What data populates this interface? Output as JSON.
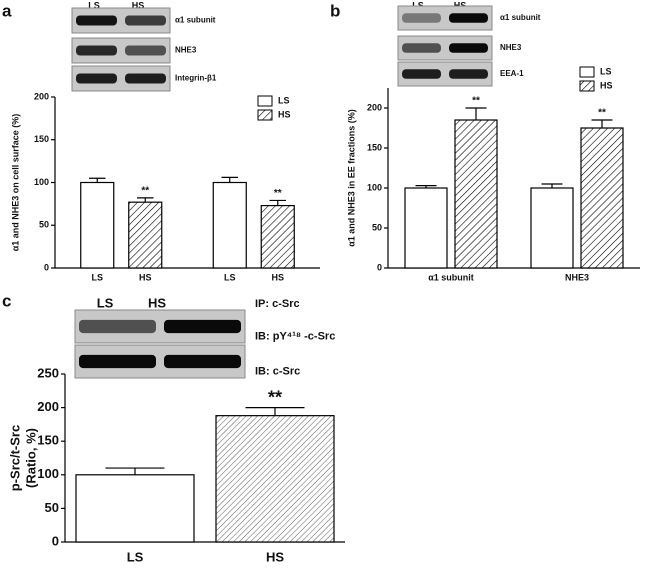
{
  "chart_data": [
    {
      "type": "bar",
      "panel": "a",
      "blot": {
        "lanes": [
          "LS",
          "HS"
        ],
        "rows": [
          "α1 subunit",
          "NHE3",
          "Integrin-β1"
        ]
      },
      "ylabel": "α1 and NHE3 on cell surface (%)",
      "categories": [
        null,
        null
      ],
      "series": [
        {
          "name": "LS",
          "color": "#ffffff",
          "hatch": false,
          "values": [
            100,
            100
          ],
          "errors": [
            5,
            6
          ]
        },
        {
          "name": "HS",
          "color": "#ffffff",
          "hatch": true,
          "values": [
            77,
            73
          ],
          "errors": [
            5,
            6
          ],
          "annotations": [
            {
              "index": 0,
              "label": "**"
            },
            {
              "index": 1,
              "label": "**"
            }
          ]
        }
      ],
      "ylim": [
        0,
        200
      ],
      "yticks": [
        0,
        50,
        100,
        150,
        200
      ],
      "legend": "upper right"
    },
    {
      "type": "bar",
      "panel": "b",
      "blot": {
        "lanes": [
          "LS",
          "HS"
        ],
        "rows": [
          "α1 subunit",
          "NHE3",
          "EEA-1"
        ]
      },
      "ylabel": "α1 and NHE3 in EE fractions (%)",
      "categories": [
        "α1 subunit",
        "NHE3"
      ],
      "series": [
        {
          "name": "LS",
          "color": "#ffffff",
          "hatch": false,
          "values": [
            100,
            100
          ],
          "errors": [
            3,
            5
          ]
        },
        {
          "name": "HS",
          "color": "#ffffff",
          "hatch": true,
          "values": [
            185,
            175
          ],
          "errors": [
            15,
            10
          ],
          "annotations": [
            {
              "index": 0,
              "label": "**"
            },
            {
              "index": 1,
              "label": "**"
            }
          ]
        }
      ],
      "ylim": [
        0,
        225
      ],
      "yticks": [
        0,
        50,
        100,
        150,
        200
      ],
      "legend": "upper right"
    },
    {
      "type": "bar",
      "panel": "c",
      "blot": {
        "lanes": [
          "LS",
          "HS"
        ],
        "rows": [
          "IB: pY⁴¹⁸ -c-Src",
          "IB: c-Src"
        ],
        "header": "IP: c-Src"
      },
      "ylabel": [
        "p-Src/t-Src",
        "(Ratio, %)"
      ],
      "categories": [
        "LS",
        "HS"
      ],
      "values": [
        100,
        188
      ],
      "errors": [
        10,
        12
      ],
      "color": "#ffffff",
      "hatch": [
        false,
        true
      ],
      "annotations": [
        {
          "index": 1,
          "label": "**"
        }
      ],
      "ylim": [
        0,
        250
      ],
      "yticks": [
        0,
        50,
        100,
        150,
        200,
        250
      ]
    }
  ]
}
